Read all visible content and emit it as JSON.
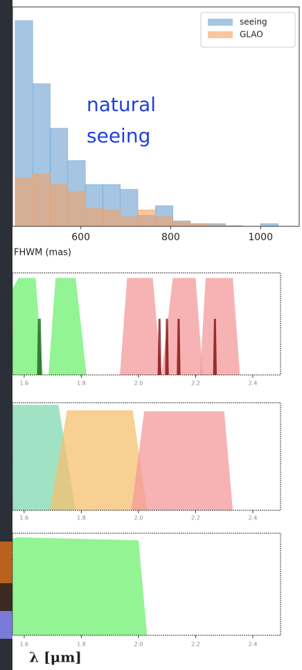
{
  "chart_data": [
    {
      "type": "histogram",
      "xlabel": "FHWM (mas)",
      "annotation": [
        "natural",
        "seeing"
      ],
      "bins": [
        454,
        493,
        532,
        571,
        610,
        649,
        688,
        727,
        766,
        805,
        844,
        883,
        922,
        961,
        1000,
        1039
      ],
      "series": [
        {
          "name": "seeing",
          "color": "#6a9fd0",
          "values": [
            30,
            20.8,
            14.3,
            9.6,
            6.1,
            6.1,
            5.4,
            1.6,
            3,
            0.8,
            0.4,
            0.4,
            0.1,
            0,
            0.4
          ]
        },
        {
          "name": "GLAO",
          "color": "#f5a060",
          "values": [
            7.1,
            7.6,
            6.1,
            5.1,
            2.6,
            2.4,
            1.4,
            2.4,
            1.4,
            0.6,
            0.4,
            0.2,
            0,
            0,
            0
          ]
        }
      ],
      "xlim": [
        448,
        1086
      ],
      "ylim": [
        0,
        32
      ],
      "xticks": [
        600,
        800,
        1000
      ],
      "legend": "upper right"
    },
    {
      "type": "area",
      "xlim": [
        1.559,
        2.497
      ],
      "ylim": [
        0,
        1
      ],
      "xticks": [
        1.6,
        1.8,
        {
          "value": 2,
          "label": "2.0"
        },
        2.2,
        2.4
      ],
      "series": [
        {
          "color": "#6ef06e",
          "x": [
            1.559,
            1.56,
            1.58,
            1.64,
            1.665
          ],
          "values": [
            0,
            0.85,
            0.95,
            0.95,
            0
          ]
        },
        {
          "color": "#6ef06e",
          "x": [
            1.685,
            1.71,
            1.78,
            1.818
          ],
          "values": [
            0,
            0.95,
            0.95,
            0
          ]
        },
        {
          "color": "#0f5a12",
          "x": [
            1.645,
            1.648,
            1.658,
            1.662
          ],
          "values": [
            0,
            0.55,
            0.55,
            0
          ]
        },
        {
          "color": "#f49a9a",
          "x": [
            1.935,
            1.96,
            2.05,
            2.08
          ],
          "values": [
            0,
            0.95,
            0.95,
            0
          ]
        },
        {
          "color": "#f49a9a",
          "x": [
            2.08,
            2.12,
            2.2,
            2.225
          ],
          "values": [
            0,
            0.95,
            0.95,
            0
          ]
        },
        {
          "color": "#f49a9a",
          "x": [
            2.215,
            2.235,
            2.33,
            2.355
          ],
          "values": [
            0,
            0.95,
            0.95,
            0
          ]
        },
        {
          "color": "#7a0000",
          "x": [
            2.067,
            2.07,
            2.077,
            2.08
          ],
          "values": [
            0,
            0.55,
            0.55,
            0
          ]
        },
        {
          "color": "#7a0000",
          "x": [
            2.093,
            2.096,
            2.103,
            2.106
          ],
          "values": [
            0,
            0.55,
            0.55,
            0
          ]
        },
        {
          "color": "#7a0000",
          "x": [
            2.134,
            2.137,
            2.144,
            2.147
          ],
          "values": [
            0,
            0.55,
            0.55,
            0
          ]
        },
        {
          "color": "#7a0000",
          "x": [
            2.261,
            2.264,
            2.271,
            2.274
          ],
          "values": [
            0,
            0.55,
            0.55,
            0
          ]
        }
      ]
    },
    {
      "type": "area",
      "xlim": [
        1.559,
        2.497
      ],
      "ylim": [
        0,
        1
      ],
      "xticks": [
        1.6,
        1.8,
        {
          "value": 2,
          "label": "2.0"
        },
        2.2,
        2.4
      ],
      "series": [
        {
          "color": "#7fd9b0",
          "x": [
            1.559,
            1.5595,
            1.72,
            1.78
          ],
          "values": [
            0,
            0.98,
            0.98,
            0
          ]
        },
        {
          "color": "#f5c070",
          "x": [
            1.69,
            1.75,
            1.98,
            2.03
          ],
          "values": [
            0,
            0.93,
            0.93,
            0
          ]
        },
        {
          "color": "#f49a9a",
          "x": [
            1.975,
            2.02,
            2.3,
            2.33
          ],
          "values": [
            0,
            0.92,
            0.92,
            0
          ]
        }
      ]
    },
    {
      "type": "area",
      "xlabel": "λ [μm]",
      "xlim": [
        1.559,
        2.497
      ],
      "ylim": [
        0,
        1
      ],
      "xticks": [
        1.6,
        1.8,
        {
          "value": 2,
          "label": "2.0"
        },
        2.2,
        2.4
      ],
      "series": [
        {
          "color": "#6ef06e",
          "x": [
            1.559,
            1.5595,
            1.58,
            2.0,
            2.03
          ],
          "values": [
            0,
            0.95,
            0.96,
            0.93,
            0
          ]
        }
      ]
    }
  ]
}
